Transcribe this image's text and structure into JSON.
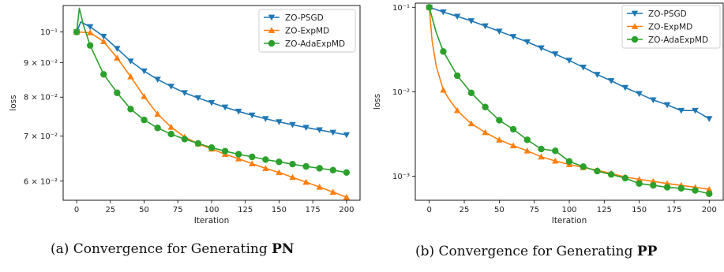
{
  "chart_data": [
    {
      "type": "line",
      "xlabel": "Iteration",
      "ylabel": "loss",
      "yscale": "log",
      "xlim": [
        -10,
        210
      ],
      "ylim": [
        0.0562,
        0.1095
      ],
      "xticks": [
        0,
        25,
        50,
        75,
        100,
        125,
        150,
        175,
        200
      ],
      "yticks": [
        {
          "value": 0.1,
          "label": "10⁻¹"
        },
        {
          "value": 0.09,
          "label": "9 × 10⁻²"
        },
        {
          "value": 0.08,
          "label": "8 × 10⁻²"
        },
        {
          "value": 0.07,
          "label": "7 × 10⁻²"
        },
        {
          "value": 0.06,
          "label": "6 × 10⁻²"
        }
      ],
      "legend": "top-right",
      "grid": false,
      "series": [
        {
          "name": "ZO-PSGD",
          "color": "#1f77b4",
          "marker": "triangle-down",
          "x": [
            0,
            3,
            10,
            20,
            30,
            40,
            50,
            60,
            70,
            80,
            90,
            100,
            110,
            120,
            130,
            140,
            150,
            160,
            170,
            180,
            190,
            200
          ],
          "y": [
            0.1,
            0.1035,
            0.1018,
            0.0985,
            0.0945,
            0.0905,
            0.0875,
            0.085,
            0.083,
            0.0812,
            0.0798,
            0.0785,
            0.0773,
            0.0762,
            0.0752,
            0.0743,
            0.0735,
            0.0728,
            0.0721,
            0.0715,
            0.0709,
            0.0703
          ],
          "marker_x": [
            0,
            10,
            20,
            30,
            40,
            50,
            60,
            70,
            80,
            90,
            100,
            110,
            120,
            130,
            140,
            150,
            160,
            170,
            180,
            190,
            200
          ]
        },
        {
          "name": "ZO-ExpMD",
          "color": "#ff7f0e",
          "marker": "triangle-up",
          "x": [
            0,
            10,
            20,
            30,
            40,
            50,
            60,
            70,
            80,
            90,
            100,
            110,
            120,
            130,
            140,
            150,
            160,
            170,
            180,
            190,
            200
          ],
          "y": [
            0.1,
            0.0998,
            0.0968,
            0.0915,
            0.0858,
            0.0802,
            0.0755,
            0.0722,
            0.0698,
            0.0682,
            0.067,
            0.0658,
            0.0648,
            0.0637,
            0.0627,
            0.0618,
            0.0608,
            0.0598,
            0.0588,
            0.0578,
            0.0568
          ],
          "marker_x": [
            0,
            10,
            20,
            30,
            40,
            50,
            60,
            70,
            80,
            90,
            100,
            110,
            120,
            130,
            140,
            150,
            160,
            170,
            180,
            190,
            200
          ]
        },
        {
          "name": "ZO-AdaExpMD",
          "color": "#2ca02c",
          "marker": "circle",
          "x": [
            0,
            2,
            5,
            10,
            20,
            30,
            40,
            50,
            60,
            70,
            80,
            90,
            100,
            110,
            120,
            130,
            140,
            150,
            160,
            170,
            180,
            190,
            200
          ],
          "y": [
            0.1,
            0.1085,
            0.1025,
            0.0955,
            0.0865,
            0.0812,
            0.0768,
            0.074,
            0.072,
            0.0705,
            0.0693,
            0.0683,
            0.0673,
            0.0665,
            0.0658,
            0.0652,
            0.0646,
            0.0641,
            0.0636,
            0.0631,
            0.0627,
            0.0623,
            0.0618
          ],
          "marker_x": [
            0,
            10,
            20,
            30,
            40,
            50,
            60,
            70,
            80,
            90,
            100,
            110,
            120,
            130,
            140,
            150,
            160,
            170,
            180,
            190,
            200
          ]
        }
      ]
    },
    {
      "type": "line",
      "xlabel": "Iteration",
      "ylabel": "loss",
      "yscale": "log",
      "xlim": [
        -10,
        210
      ],
      "ylim": [
        0.00052,
        0.112
      ],
      "xticks": [
        0,
        25,
        50,
        75,
        100,
        125,
        150,
        175,
        200
      ],
      "yticks": [
        {
          "value": 0.1,
          "label": "10⁻¹"
        },
        {
          "value": 0.01,
          "label": "10⁻²"
        },
        {
          "value": 0.001,
          "label": "10⁻³"
        }
      ],
      "legend": "top-right",
      "grid": false,
      "series": [
        {
          "name": "ZO-PSGD",
          "color": "#1f77b4",
          "marker": "triangle-down",
          "x": [
            0,
            10,
            20,
            30,
            40,
            50,
            60,
            70,
            80,
            90,
            100,
            110,
            120,
            130,
            140,
            150,
            160,
            170,
            180,
            190,
            200
          ],
          "y": [
            0.1,
            0.088,
            0.078,
            0.069,
            0.06,
            0.052,
            0.045,
            0.039,
            0.033,
            0.028,
            0.0235,
            0.0195,
            0.016,
            0.0135,
            0.0112,
            0.0095,
            0.008,
            0.007,
            0.006,
            0.006,
            0.0048
          ],
          "marker_x": [
            0,
            10,
            20,
            30,
            40,
            50,
            60,
            70,
            80,
            90,
            100,
            110,
            120,
            130,
            140,
            150,
            160,
            170,
            180,
            190,
            200
          ]
        },
        {
          "name": "ZO-ExpMD",
          "color": "#ff7f0e",
          "marker": "triangle-up",
          "x": [
            0,
            2,
            5,
            10,
            15,
            20,
            25,
            30,
            40,
            50,
            60,
            70,
            80,
            90,
            100,
            110,
            120,
            130,
            140,
            150,
            160,
            170,
            180,
            190,
            200
          ],
          "y": [
            0.1,
            0.04,
            0.02,
            0.0105,
            0.0078,
            0.006,
            0.005,
            0.0042,
            0.0033,
            0.0027,
            0.0023,
            0.002,
            0.0017,
            0.00152,
            0.00138,
            0.00127,
            0.00118,
            0.00108,
            0.00098,
            0.00092,
            0.00087,
            0.00082,
            0.00078,
            0.00074,
            0.0007
          ],
          "marker_x": [
            0,
            10,
            20,
            30,
            40,
            50,
            60,
            70,
            80,
            90,
            100,
            110,
            120,
            130,
            140,
            150,
            160,
            170,
            180,
            190,
            200
          ]
        },
        {
          "name": "ZO-AdaExpMD",
          "color": "#2ca02c",
          "marker": "circle",
          "x": [
            0,
            5,
            10,
            20,
            30,
            40,
            50,
            60,
            70,
            80,
            90,
            100,
            110,
            120,
            130,
            140,
            150,
            160,
            170,
            180,
            190,
            200
          ],
          "y": [
            0.1,
            0.05,
            0.03,
            0.0155,
            0.0097,
            0.0066,
            0.0046,
            0.0036,
            0.0027,
            0.0021,
            0.002,
            0.0015,
            0.0013,
            0.00115,
            0.00105,
            0.00095,
            0.00082,
            0.00078,
            0.00074,
            0.00072,
            0.00068,
            0.00062
          ],
          "marker_x": [
            0,
            10,
            20,
            30,
            40,
            50,
            60,
            70,
            80,
            90,
            100,
            110,
            120,
            130,
            140,
            150,
            160,
            170,
            180,
            190,
            200
          ]
        }
      ]
    }
  ],
  "captions": [
    {
      "prefix": "(a) Convergence for Generating ",
      "bold": "PN"
    },
    {
      "prefix": "(b) Convergence for Generating ",
      "bold": "PP"
    }
  ]
}
